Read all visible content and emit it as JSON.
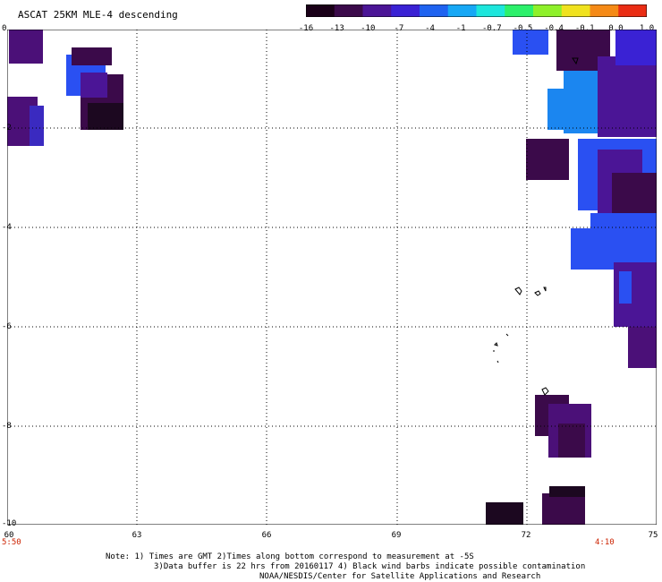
{
  "header": {
    "title": "ASCAT 25KM MLE-4 descending"
  },
  "colorbar": {
    "labels": [
      "-16",
      "-13",
      "-10",
      "-7",
      "-4",
      "-1",
      "-0.7",
      "-0.5",
      "-0.4",
      "-0.1",
      "0.0",
      "1.0"
    ],
    "colors": [
      "#1a0018",
      "#3b0a4a",
      "#4b1596",
      "#3a22d4",
      "#1f63f0",
      "#17a8f5",
      "#1de6dc",
      "#2cf06b",
      "#8ef02a",
      "#f0e21e",
      "#f58a16",
      "#ea2d14"
    ]
  },
  "map": {
    "x_ticks": [
      "60",
      "63",
      "66",
      "69",
      "72",
      "75"
    ],
    "y_ticks": [
      "0",
      "-2",
      "-4",
      "-6",
      "-8",
      "-10"
    ],
    "lon_range": [
      60,
      75
    ],
    "lat_range": [
      0,
      -10
    ],
    "gridlines": "dotted",
    "swath_colors": {
      "deep_purple": "#4b1078",
      "dark": "#1c0820",
      "blue": "#2a50f2",
      "light_blue": "#1b86f0"
    }
  },
  "time_labels": {
    "left": "5:50",
    "right": "4:10"
  },
  "notes": {
    "line1": "Note: 1) Times are GMT 2)Times along bottom correspond to measurement at -5S",
    "line2": "3)Data buffer is 22 hrs from 20160117 4) Black wind barbs indicate possible contamination",
    "line3": "NOAA/NESDIS/Center for Satellite Applications and Research"
  }
}
